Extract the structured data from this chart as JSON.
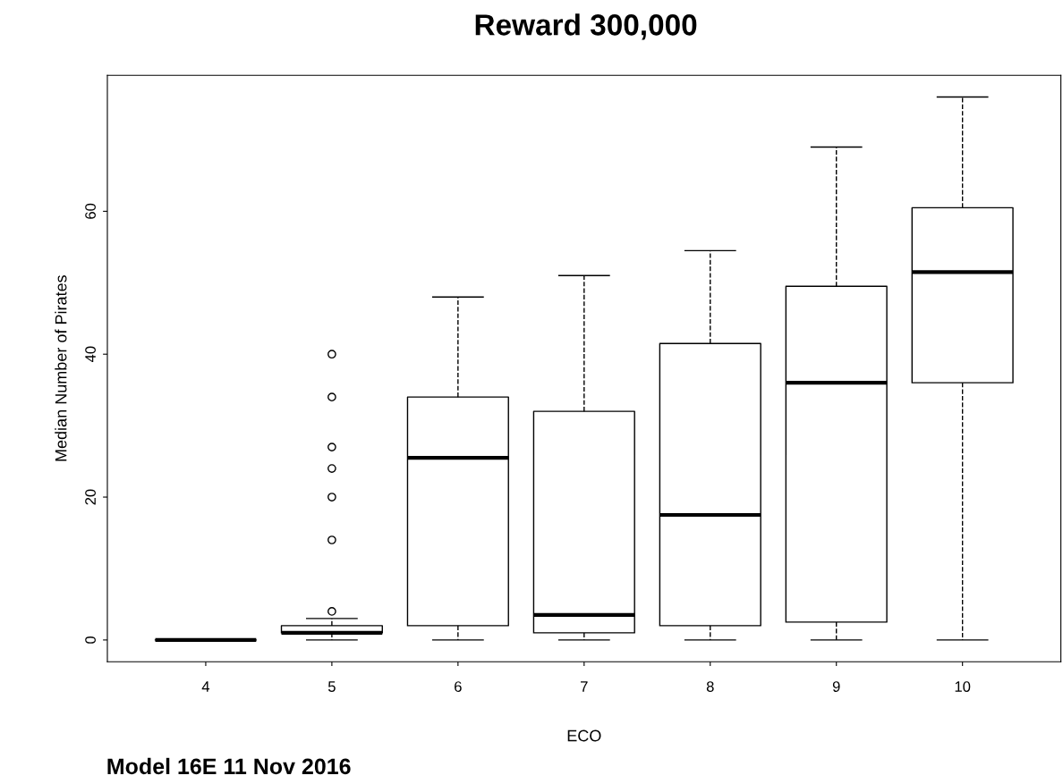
{
  "chart_data": {
    "type": "box",
    "title": "Reward 300,000",
    "xlabel": "ECO",
    "ylabel": "Median Number of Pirates",
    "annotations": [
      "Model 16E 11 Nov 2016"
    ],
    "categories": [
      "4",
      "5",
      "6",
      "7",
      "8",
      "9",
      "10"
    ],
    "boxes": [
      {
        "low": 0,
        "q1": 0,
        "median": 0,
        "q3": 0,
        "high": 0
      },
      {
        "low": 0,
        "q1": 1,
        "median": 1,
        "q3": 2,
        "high": 3,
        "outliers": [
          4,
          14,
          20,
          24,
          27,
          34,
          40
        ]
      },
      {
        "low": 0,
        "q1": 2,
        "median": 25.5,
        "q3": 34,
        "high": 48
      },
      {
        "low": 0,
        "q1": 1,
        "median": 3.5,
        "q3": 32,
        "high": 51
      },
      {
        "low": 0,
        "q1": 2,
        "median": 17.5,
        "q3": 41.5,
        "high": 54.5
      },
      {
        "low": 0,
        "q1": 2.5,
        "median": 36,
        "q3": 49.5,
        "high": 69
      },
      {
        "low": 0,
        "q1": 36,
        "median": 51.5,
        "q3": 60.5,
        "high": 76
      }
    ],
    "ylim": [
      -3.04,
      79.04
    ],
    "yticks": [
      0,
      20,
      40,
      60
    ],
    "grid": false
  }
}
